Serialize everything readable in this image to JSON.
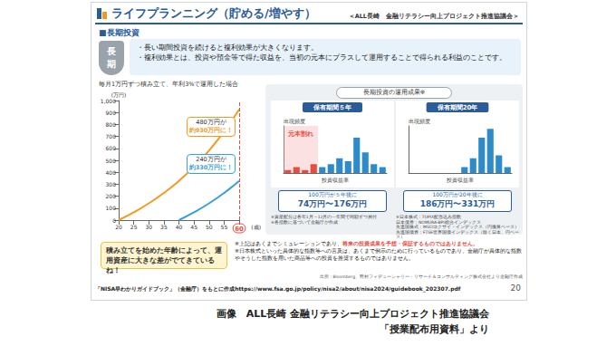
{
  "slide": {
    "title": "ライフプランニング（貯める/増やす）",
    "organization": "＜ALL長崎　金融リテラシー向上プロジェクト推進協議会＞",
    "section": "■長期投資",
    "badge": "長期",
    "bullets": [
      "・長い期間投資を続けると複利効果が大きくなります。",
      "・複利効果とは、投資や預金等で得た収益を、当初の元本にプラスして運用することで得られる利益のことです。"
    ],
    "speech": "積み立てを始めた年齢によって、運用資産に大きな差がでてきているね！",
    "notes": [
      [
        "※上記はあくまでシミュレーションであり、",
        "将来の投資成果を予想・保証するものではありません。"
      ],
      [
        "※日本株式といった具体的な指数等への言及は、あくまで例示のために行っているものであり、金融庁が具体的な指数やそうした指数を用いた商品等への投資を推奨するものではありません。"
      ]
    ],
    "source": "出所：Bloomberg、野村フィデューシャリー・リサーチ＆コンサルティング株式会社より金融庁作成",
    "reference": "「NISA早わかりガイドブック」（金融庁）をもとに作成https://www.fsa.go.jp/policy/nisa2/about/nisa2024/guidebook_202307.pdf",
    "page": "20",
    "panel_title": "長期投資の運用成果※",
    "panel_notes_left": [
      "※資産配分は各年1月～12月の一年間で同額ずつ買付",
      "※各指数に基づいて金融庁が作成"
    ],
    "panel_notes_right": [
      "※日本株式：TOPIX配当込み指数",
      "日本債券：NOMURA-BPI総合インデックス",
      "先進国株式：MSCIコクサイ・インデックス（円換算ベース）",
      "先進国債券：FTSE世界国債インデックス（除く日本、円ベース）"
    ]
  },
  "caption": [
    "画像　ALL長崎 金融リテラシー向上プロジェクト推進協議会",
    "「授業配布用資料」より"
  ],
  "chart_data": [
    {
      "type": "line",
      "subtitle": "毎月1万円ずつ積み立て、年利3%で運用した場合",
      "x_label": "(歳)",
      "y_label": "(万円)",
      "x": [
        20,
        25,
        30,
        35,
        40,
        45,
        50,
        55,
        60
      ],
      "series": [
        {
          "color": "#f39a1e",
          "values": [
            0,
            65,
            140,
            227,
            328,
            446,
            583,
            742,
            926
          ],
          "annotation": [
            "480万円が",
            "約930万円に！"
          ]
        },
        {
          "color": "#3a9fd8",
          "values": [
            null,
            null,
            null,
            null,
            0,
            65,
            140,
            227,
            328
          ],
          "annotation": [
            "240万円が",
            "約330万円に！"
          ]
        }
      ],
      "xlim": [
        20,
        60
      ],
      "xticks": [
        20,
        25,
        30,
        35,
        40,
        45,
        50,
        55,
        60
      ],
      "ylim": [
        0,
        1000
      ],
      "yticks": [
        0,
        100,
        200,
        300,
        400,
        500,
        600,
        700,
        800,
        900,
        1000
      ],
      "grid": false
    },
    {
      "type": "bar",
      "title": "保有期間５年",
      "x_label": "投資収益率",
      "y_label": "出現頻度",
      "categories": [
        null,
        null,
        null,
        null,
        null,
        null,
        null,
        null,
        null,
        null,
        null,
        null
      ],
      "values": [
        1,
        2,
        1,
        3,
        2,
        3,
        5,
        4,
        12,
        7,
        3,
        2
      ],
      "colors": [
        "#e74c3c",
        "#e74c3c",
        "#e74c3c",
        "#e74c3c",
        "#2e8bc9",
        "#2e8bc9",
        "#2e8bc9",
        "#2e8bc9",
        "#2e8bc9",
        "#2e8bc9",
        "#2e8bc9",
        "#2e8bc9"
      ],
      "annotation": "元本割れ",
      "result": [
        "100万円が５年後に",
        "74万円〜176万円"
      ],
      "ylim": [
        0,
        16
      ],
      "tick_labels": false,
      "grid": false
    },
    {
      "type": "bar",
      "title": "保有期間20年",
      "x_label": "投資収益率",
      "y_label": "出現頻度",
      "categories": [
        null,
        null,
        null,
        null,
        null,
        null,
        null,
        null,
        null,
        null,
        null,
        null
      ],
      "values": [
        0,
        0,
        0,
        0,
        0,
        0,
        2,
        5,
        12,
        15,
        6,
        2
      ],
      "colors": [
        "#2e8bc9",
        "#2e8bc9",
        "#2e8bc9",
        "#2e8bc9",
        "#2e8bc9",
        "#2e8bc9",
        "#2e8bc9",
        "#2e8bc9",
        "#2e8bc9",
        "#2e8bc9",
        "#2e8bc9",
        "#2e8bc9"
      ],
      "result": [
        "100万円が20年後に",
        "186万円〜331万円"
      ],
      "ylim": [
        0,
        16
      ],
      "tick_labels": false,
      "grid": false
    }
  ]
}
